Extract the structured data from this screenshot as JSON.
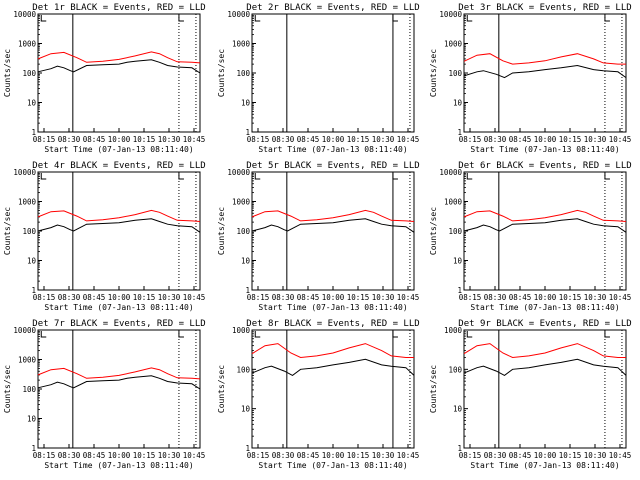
{
  "chart_data": [
    {
      "type": "line",
      "title": "Det 1r BLACK = Events, RED = LLD",
      "ylabel": "Counts/sec",
      "xlabel": "Start Time (07-Jan-13 08:11:40)",
      "x_ticks": [
        "08:15",
        "08:30",
        "08:45",
        "10:00",
        "10:15",
        "10:30",
        "10:45"
      ],
      "y_ticks": [
        "10000",
        "1000",
        "100",
        "10",
        "1"
      ],
      "yscale": "log",
      "ylim": [
        1,
        10000
      ],
      "markers": [
        {
          "style": "solid",
          "x_label": "08:30"
        },
        {
          "style": "dotted",
          "x_label": "10:30"
        },
        {
          "style": "dotted",
          "x_label": "10:45"
        }
      ],
      "data_present": true,
      "series": [
        {
          "name": "Events",
          "color": "#000000",
          "x": [
            0,
            0.08,
            0.12,
            0.16,
            0.2,
            0.22,
            0.3,
            0.4,
            0.5,
            0.55,
            0.6,
            0.7,
            0.75,
            0.8,
            0.86,
            0.95,
            1
          ],
          "y": [
            110,
            140,
            170,
            150,
            120,
            110,
            180,
            190,
            200,
            230,
            250,
            280,
            230,
            180,
            160,
            150,
            100
          ]
        },
        {
          "name": "LLD",
          "color": "#ff0000",
          "x": [
            0,
            0.08,
            0.16,
            0.24,
            0.3,
            0.4,
            0.5,
            0.6,
            0.7,
            0.75,
            0.8,
            0.86,
            0.95,
            1
          ],
          "y": [
            300,
            450,
            500,
            330,
            230,
            250,
            290,
            380,
            520,
            450,
            330,
            240,
            230,
            220
          ]
        }
      ]
    },
    {
      "type": "line",
      "title": "Det 2r BLACK = Events, RED = LLD",
      "ylabel": "Counts/sec",
      "xlabel": "Start Time (07-Jan-13 08:11:40)",
      "x_ticks": [
        "08:15",
        "08:30",
        "08:45",
        "10:00",
        "10:15",
        "10:30",
        "10:45"
      ],
      "y_ticks": [
        "10000",
        "1000",
        "100",
        "10",
        "1"
      ],
      "yscale": "log",
      "ylim": [
        1,
        10000
      ],
      "markers": [
        {
          "style": "solid",
          "x_label": "08:30"
        },
        {
          "style": "solid",
          "x_label": "10:30"
        },
        {
          "style": "dotted",
          "x_label": "10:45"
        }
      ],
      "data_present": false,
      "series": []
    },
    {
      "type": "line",
      "title": "Det 3r BLACK = Events, RED = LLD",
      "ylabel": "Counts/sec",
      "xlabel": "Start Time (07-Jan-13 08:11:40)",
      "x_ticks": [
        "08:15",
        "08:30",
        "08:45",
        "10:00",
        "10:15",
        "10:30",
        "10:45"
      ],
      "y_ticks": [
        "10000",
        "1000",
        "100",
        "10",
        "1"
      ],
      "yscale": "log",
      "ylim": [
        1,
        10000
      ],
      "markers": [
        {
          "style": "solid",
          "x_label": "08:30"
        },
        {
          "style": "dotted",
          "x_label": "10:30"
        },
        {
          "style": "dotted",
          "x_label": "10:45"
        }
      ],
      "data_present": true,
      "series": [
        {
          "name": "Events",
          "color": "#000000",
          "x": [
            0,
            0.08,
            0.12,
            0.2,
            0.25,
            0.3,
            0.4,
            0.5,
            0.6,
            0.7,
            0.8,
            0.86,
            0.95,
            1
          ],
          "y": [
            80,
            110,
            120,
            90,
            70,
            100,
            110,
            130,
            150,
            180,
            130,
            120,
            110,
            70
          ]
        },
        {
          "name": "LLD",
          "color": "#ff0000",
          "x": [
            0,
            0.08,
            0.16,
            0.24,
            0.3,
            0.4,
            0.5,
            0.6,
            0.7,
            0.8,
            0.86,
            0.95,
            1
          ],
          "y": [
            250,
            400,
            450,
            260,
            200,
            220,
            260,
            350,
            450,
            300,
            220,
            200,
            200
          ]
        }
      ]
    },
    {
      "type": "line",
      "title": "Det 4r BLACK = Events, RED = LLD",
      "ylabel": "Counts/sec",
      "xlabel": "Start Time (07-Jan-13 08:11:40)",
      "x_ticks": [
        "08:15",
        "08:30",
        "08:45",
        "10:00",
        "10:15",
        "10:30",
        "10:45"
      ],
      "y_ticks": [
        "10000",
        "1000",
        "100",
        "10",
        "1"
      ],
      "yscale": "log",
      "ylim": [
        1,
        10000
      ],
      "markers": [
        {
          "style": "solid",
          "x_label": "08:30"
        },
        {
          "style": "dotted",
          "x_label": "10:30"
        },
        {
          "style": "dotted",
          "x_label": "10:45"
        }
      ],
      "data_present": true,
      "series": [
        {
          "name": "Events",
          "color": "#000000",
          "x": [
            0,
            0.08,
            0.12,
            0.16,
            0.2,
            0.22,
            0.3,
            0.4,
            0.5,
            0.55,
            0.6,
            0.7,
            0.75,
            0.8,
            0.86,
            0.95,
            1
          ],
          "y": [
            100,
            130,
            160,
            140,
            110,
            100,
            170,
            180,
            190,
            210,
            230,
            260,
            210,
            170,
            150,
            140,
            90
          ]
        },
        {
          "name": "LLD",
          "color": "#ff0000",
          "x": [
            0,
            0.08,
            0.16,
            0.24,
            0.3,
            0.4,
            0.5,
            0.6,
            0.7,
            0.75,
            0.8,
            0.86,
            0.95,
            1
          ],
          "y": [
            300,
            450,
            480,
            320,
            220,
            240,
            280,
            360,
            500,
            430,
            320,
            230,
            220,
            210
          ]
        }
      ]
    },
    {
      "type": "line",
      "title": "Det 5r BLACK = Events, RED = LLD",
      "ylabel": "Counts/sec",
      "xlabel": "Start Time (07-Jan-13 08:11:40)",
      "x_ticks": [
        "08:15",
        "08:30",
        "08:45",
        "10:00",
        "10:15",
        "10:30",
        "10:45"
      ],
      "y_ticks": [
        "10000",
        "1000",
        "100",
        "10",
        "1"
      ],
      "yscale": "log",
      "ylim": [
        1,
        10000
      ],
      "markers": [
        {
          "style": "solid",
          "x_label": "08:30"
        },
        {
          "style": "solid",
          "x_label": "10:30"
        },
        {
          "style": "dotted",
          "x_label": "10:45"
        }
      ],
      "data_present": true,
      "series": [
        {
          "name": "Events",
          "color": "#000000",
          "x": [
            0,
            0.08,
            0.12,
            0.16,
            0.2,
            0.22,
            0.3,
            0.4,
            0.5,
            0.55,
            0.6,
            0.7,
            0.75,
            0.8,
            0.86,
            0.95,
            1
          ],
          "y": [
            100,
            130,
            160,
            140,
            110,
            100,
            170,
            180,
            190,
            210,
            230,
            260,
            210,
            170,
            150,
            140,
            90
          ]
        },
        {
          "name": "LLD",
          "color": "#ff0000",
          "x": [
            0,
            0.08,
            0.16,
            0.24,
            0.3,
            0.4,
            0.5,
            0.6,
            0.7,
            0.75,
            0.8,
            0.86,
            0.95,
            1
          ],
          "y": [
            300,
            450,
            480,
            320,
            220,
            240,
            280,
            360,
            500,
            430,
            320,
            230,
            220,
            210
          ]
        }
      ]
    },
    {
      "type": "line",
      "title": "Det 6r BLACK = Events, RED = LLD",
      "ylabel": "Counts/sec",
      "xlabel": "Start Time (07-Jan-13 08:11:40)",
      "x_ticks": [
        "08:15",
        "08:30",
        "08:45",
        "10:00",
        "10:15",
        "10:30",
        "10:45"
      ],
      "y_ticks": [
        "10000",
        "1000",
        "100",
        "10",
        "1"
      ],
      "yscale": "log",
      "ylim": [
        1,
        10000
      ],
      "markers": [
        {
          "style": "solid",
          "x_label": "08:30"
        },
        {
          "style": "dotted",
          "x_label": "10:30"
        },
        {
          "style": "dotted",
          "x_label": "10:45"
        }
      ],
      "data_present": true,
      "series": [
        {
          "name": "Events",
          "color": "#000000",
          "x": [
            0,
            0.08,
            0.12,
            0.16,
            0.2,
            0.22,
            0.3,
            0.4,
            0.5,
            0.55,
            0.6,
            0.7,
            0.75,
            0.8,
            0.86,
            0.95,
            1
          ],
          "y": [
            100,
            130,
            160,
            140,
            110,
            100,
            170,
            180,
            190,
            210,
            230,
            260,
            210,
            170,
            150,
            140,
            90
          ]
        },
        {
          "name": "LLD",
          "color": "#ff0000",
          "x": [
            0,
            0.08,
            0.16,
            0.24,
            0.3,
            0.4,
            0.5,
            0.6,
            0.7,
            0.75,
            0.8,
            0.86,
            0.95,
            1
          ],
          "y": [
            300,
            450,
            480,
            320,
            220,
            240,
            280,
            360,
            500,
            430,
            320,
            230,
            220,
            210
          ]
        }
      ]
    },
    {
      "type": "line",
      "title": "Det 7r BLACK = Events, RED = LLD",
      "ylabel": "Counts/sec",
      "xlabel": "Start Time (07-Jan-13 08:11:40)",
      "x_ticks": [
        "08:15",
        "08:30",
        "08:45",
        "10:00",
        "10:15",
        "10:30",
        "10:45"
      ],
      "y_ticks": [
        "10000",
        "1000",
        "100",
        "10",
        "1"
      ],
      "yscale": "log",
      "ylim": [
        1,
        10000
      ],
      "markers": [
        {
          "style": "solid",
          "x_label": "08:30"
        },
        {
          "style": "dotted",
          "x_label": "10:30"
        },
        {
          "style": "dotted",
          "x_label": "10:45"
        }
      ],
      "data_present": true,
      "series": [
        {
          "name": "Events",
          "color": "#000000",
          "x": [
            0,
            0.08,
            0.12,
            0.16,
            0.2,
            0.22,
            0.3,
            0.4,
            0.5,
            0.55,
            0.6,
            0.7,
            0.75,
            0.8,
            0.86,
            0.95,
            1
          ],
          "y": [
            110,
            140,
            170,
            150,
            120,
            110,
            180,
            190,
            200,
            230,
            250,
            280,
            230,
            180,
            160,
            150,
            100
          ]
        },
        {
          "name": "LLD",
          "color": "#ff0000",
          "x": [
            0,
            0.08,
            0.16,
            0.24,
            0.3,
            0.4,
            0.5,
            0.6,
            0.7,
            0.75,
            0.8,
            0.86,
            0.95,
            1
          ],
          "y": [
            300,
            450,
            500,
            330,
            230,
            250,
            290,
            380,
            520,
            450,
            330,
            240,
            230,
            220
          ]
        }
      ]
    },
    {
      "type": "line",
      "title": "Det 8r BLACK = Events, RED = LLD",
      "ylabel": "Counts/sec",
      "xlabel": "Start Time (07-Jan-13 08:11:40)",
      "x_ticks": [
        "08:15",
        "08:30",
        "08:45",
        "10:00",
        "10:15",
        "10:30",
        "10:45"
      ],
      "y_ticks": [
        "1000",
        "100",
        "10",
        "1"
      ],
      "yscale": "log",
      "ylim": [
        1,
        1000
      ],
      "markers": [
        {
          "style": "solid",
          "x_label": "08:30"
        },
        {
          "style": "solid",
          "x_label": "10:30"
        },
        {
          "style": "dotted",
          "x_label": "10:45"
        }
      ],
      "data_present": true,
      "series": [
        {
          "name": "Events",
          "color": "#000000",
          "x": [
            0,
            0.08,
            0.12,
            0.2,
            0.25,
            0.3,
            0.4,
            0.5,
            0.6,
            0.7,
            0.8,
            0.86,
            0.95,
            1
          ],
          "y": [
            80,
            110,
            120,
            90,
            70,
            100,
            110,
            130,
            150,
            180,
            130,
            120,
            110,
            70
          ]
        },
        {
          "name": "LLD",
          "color": "#ff0000",
          "x": [
            0,
            0.08,
            0.16,
            0.24,
            0.3,
            0.4,
            0.5,
            0.6,
            0.7,
            0.8,
            0.86,
            0.95,
            1
          ],
          "y": [
            250,
            400,
            450,
            260,
            200,
            220,
            260,
            350,
            450,
            300,
            220,
            200,
            200
          ]
        }
      ]
    },
    {
      "type": "line",
      "title": "Det 9r BLACK = Events, RED = LLD",
      "ylabel": "Counts/sec",
      "xlabel": "Start Time (07-Jan-13 08:11:40)",
      "x_ticks": [
        "08:15",
        "08:30",
        "08:45",
        "10:00",
        "10:15",
        "10:30",
        "10:45"
      ],
      "y_ticks": [
        "1000",
        "100",
        "10",
        "1"
      ],
      "yscale": "log",
      "ylim": [
        1,
        1000
      ],
      "markers": [
        {
          "style": "solid",
          "x_label": "08:30"
        },
        {
          "style": "dotted",
          "x_label": "10:30"
        },
        {
          "style": "dotted",
          "x_label": "10:45"
        }
      ],
      "data_present": true,
      "series": [
        {
          "name": "Events",
          "color": "#000000",
          "x": [
            0,
            0.08,
            0.12,
            0.2,
            0.25,
            0.3,
            0.4,
            0.5,
            0.6,
            0.7,
            0.8,
            0.86,
            0.95,
            1
          ],
          "y": [
            80,
            110,
            120,
            90,
            70,
            100,
            110,
            130,
            150,
            180,
            130,
            120,
            110,
            70
          ]
        },
        {
          "name": "LLD",
          "color": "#ff0000",
          "x": [
            0,
            0.08,
            0.16,
            0.24,
            0.3,
            0.4,
            0.5,
            0.6,
            0.7,
            0.8,
            0.86,
            0.95,
            1
          ],
          "y": [
            250,
            400,
            450,
            260,
            200,
            220,
            260,
            350,
            450,
            300,
            220,
            200,
            200
          ]
        }
      ]
    }
  ]
}
